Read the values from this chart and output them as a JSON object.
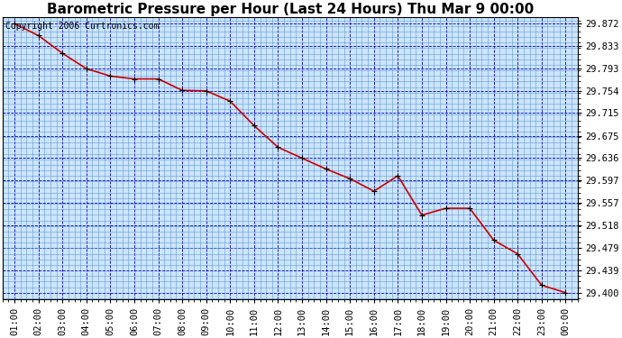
{
  "title": "Barometric Pressure per Hour (Last 24 Hours) Thu Mar 9 00:00",
  "copyright": "Copyright 2006 Curtronics.com",
  "x_labels": [
    "01:00",
    "02:00",
    "03:00",
    "04:00",
    "05:00",
    "06:00",
    "07:00",
    "08:00",
    "09:00",
    "10:00",
    "11:00",
    "12:00",
    "13:00",
    "14:00",
    "15:00",
    "16:00",
    "17:00",
    "18:00",
    "19:00",
    "20:00",
    "21:00",
    "22:00",
    "23:00",
    "00:00"
  ],
  "y_values": [
    29.872,
    29.851,
    29.82,
    29.793,
    29.78,
    29.775,
    29.775,
    29.755,
    29.754,
    29.736,
    29.693,
    29.655,
    29.636,
    29.617,
    29.6,
    29.578,
    29.605,
    29.536,
    29.548,
    29.548,
    29.492,
    29.468,
    29.413,
    29.4
  ],
  "ylim_min": 29.3885,
  "ylim_max": 29.8835,
  "yticks": [
    29.4,
    29.439,
    29.479,
    29.518,
    29.557,
    29.597,
    29.636,
    29.675,
    29.715,
    29.754,
    29.793,
    29.833,
    29.872
  ],
  "line_color": "#cc0000",
  "marker_color": "#000000",
  "background_color": "#cce5ff",
  "grid_color": "#0000bb",
  "grid_color_minor": "#6699cc",
  "title_fontsize": 11,
  "tick_fontsize": 7.5,
  "copyright_fontsize": 7
}
